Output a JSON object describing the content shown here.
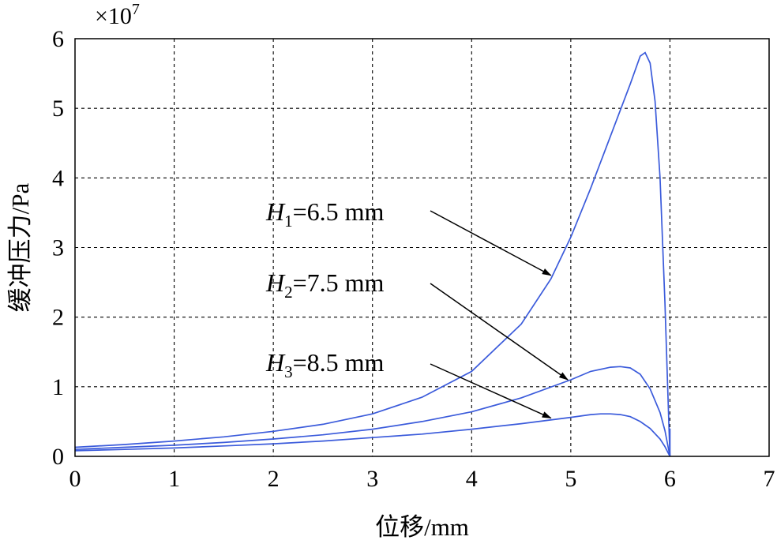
{
  "chart_data": {
    "type": "line",
    "xlabel": "位移/mm",
    "ylabel": "缓冲压力/Pa",
    "y_multiplier_label": "×10",
    "y_multiplier_exponent": "7",
    "xlim": [
      0,
      7
    ],
    "ylim": [
      0,
      6
    ],
    "x_ticks": [
      "0",
      "1",
      "2",
      "3",
      "4",
      "5",
      "6",
      "7"
    ],
    "y_ticks": [
      "0",
      "1",
      "2",
      "3",
      "4",
      "5",
      "6"
    ],
    "grid": true,
    "line_color": "#3b5bdb",
    "series": [
      {
        "name": "H1=6.5 mm",
        "label_main": "H",
        "label_sub": "1",
        "label_rest": "=6.5 mm",
        "x": [
          0,
          0.5,
          1,
          1.5,
          2,
          2.5,
          3,
          3.5,
          4,
          4.5,
          4.8,
          5,
          5.2,
          5.4,
          5.6,
          5.7,
          5.75,
          5.8,
          5.85,
          5.9,
          5.95,
          6.0
        ],
        "y": [
          0.13,
          0.17,
          0.22,
          0.28,
          0.36,
          0.46,
          0.61,
          0.85,
          1.22,
          1.9,
          2.55,
          3.15,
          3.85,
          4.6,
          5.35,
          5.75,
          5.8,
          5.65,
          5.1,
          4.0,
          2.2,
          0.0
        ]
      },
      {
        "name": "H2=7.5 mm",
        "label_main": "H",
        "label_sub": "2",
        "label_rest": "=7.5 mm",
        "x": [
          0,
          0.5,
          1,
          1.5,
          2,
          2.5,
          3,
          3.5,
          4,
          4.5,
          5,
          5.2,
          5.4,
          5.5,
          5.6,
          5.7,
          5.8,
          5.9,
          5.95,
          6.0
        ],
        "y": [
          0.1,
          0.13,
          0.16,
          0.2,
          0.25,
          0.31,
          0.39,
          0.5,
          0.64,
          0.84,
          1.1,
          1.22,
          1.28,
          1.29,
          1.27,
          1.18,
          0.97,
          0.63,
          0.37,
          0.0
        ]
      },
      {
        "name": "H3=8.5 mm",
        "label_main": "H",
        "label_sub": "3",
        "label_rest": "=8.5 mm",
        "x": [
          0,
          0.5,
          1,
          1.5,
          2,
          2.5,
          3,
          3.5,
          4,
          4.5,
          5,
          5.2,
          5.3,
          5.4,
          5.5,
          5.6,
          5.7,
          5.8,
          5.9,
          5.95,
          6.0
        ],
        "y": [
          0.08,
          0.1,
          0.12,
          0.15,
          0.18,
          0.22,
          0.27,
          0.32,
          0.39,
          0.47,
          0.56,
          0.6,
          0.61,
          0.61,
          0.6,
          0.57,
          0.5,
          0.4,
          0.25,
          0.14,
          0.0
        ]
      }
    ],
    "annotations": [
      {
        "series": 0,
        "arrow_tip": [
          4.8,
          2.6
        ]
      },
      {
        "series": 1,
        "arrow_tip": [
          4.97,
          1.1
        ]
      },
      {
        "series": 2,
        "arrow_tip": [
          4.8,
          0.55
        ]
      }
    ],
    "vertical_spike": {
      "x": 6.0,
      "y_top": 0.4
    }
  }
}
